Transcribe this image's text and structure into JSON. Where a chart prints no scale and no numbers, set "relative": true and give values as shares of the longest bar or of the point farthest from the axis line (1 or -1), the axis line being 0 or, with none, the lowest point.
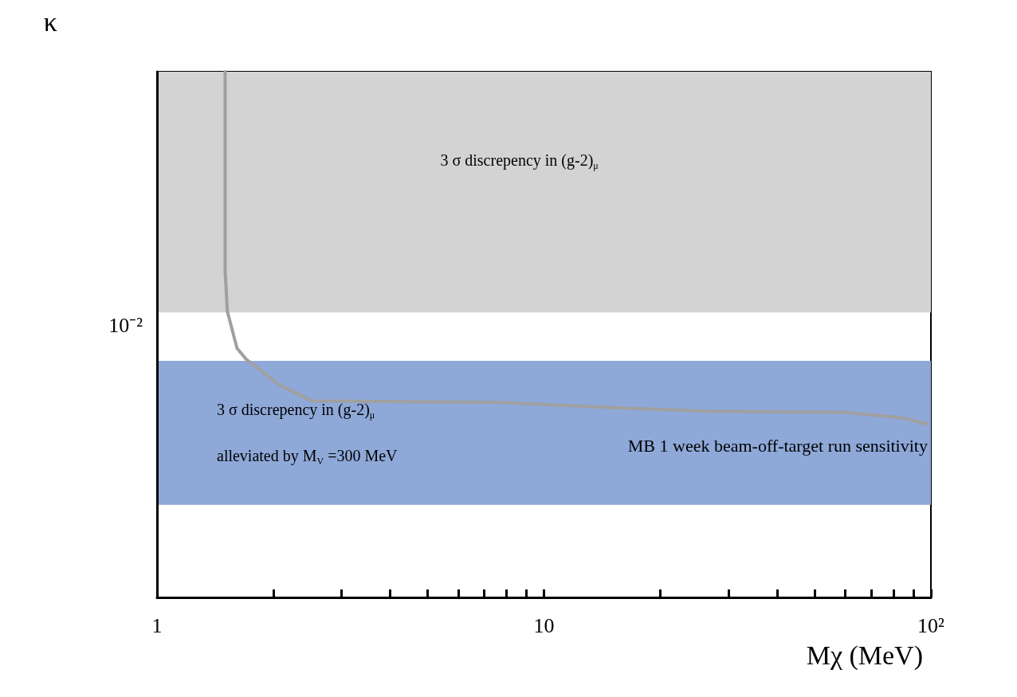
{
  "chart_data": {
    "type": "line",
    "xlabel": "Mχ (MeV)",
    "ylabel": "κ",
    "log": "x",
    "relative": true,
    "xlim": [
      1,
      100
    ],
    "xticks": [
      1,
      {
        "value": 2,
        "label": null
      },
      {
        "value": 3,
        "label": null
      },
      {
        "value": 4,
        "label": null
      },
      {
        "value": 5,
        "label": null
      },
      {
        "value": 6,
        "label": null
      },
      {
        "value": 7,
        "label": null
      },
      {
        "value": 8,
        "label": null
      },
      {
        "value": 9,
        "label": null
      },
      10,
      {
        "value": 20,
        "label": null
      },
      {
        "value": 30,
        "label": null
      },
      {
        "value": 40,
        "label": null
      },
      {
        "value": 50,
        "label": null
      },
      {
        "value": 60,
        "label": null
      },
      {
        "value": 70,
        "label": null
      },
      {
        "value": 80,
        "label": null
      },
      {
        "value": 90,
        "label": null
      },
      {
        "value": 100,
        "label": "10²"
      }
    ],
    "grid": false,
    "marker": "none",
    "annotations": [
      "10⁻²"
    ],
    "bands": [
      {
        "axis": "y",
        "from": 0.542,
        "to": 1,
        "label": "3 σ discrepency in (g-2)$_{μ}$",
        "color": "#d3d3d3"
      },
      {
        "axis": "y",
        "from": 0.176,
        "to": 0.45,
        "label": "3 σ discrepency in (g-2)$_{μ}$\nalleviated by M$_{V}$ =300 MeV",
        "color": "#8ea8d8"
      }
    ],
    "series": [
      {
        "name": "MB 1 week beam-off-target run sensitivity",
        "color": "#a0a0a0",
        "x": [
          1.5,
          1.5,
          1.52,
          1.61,
          1.7,
          2.08,
          2.51,
          7.67,
          15.1,
          26.4,
          60.2,
          83.5,
          98.1
        ],
        "values": [
          1,
          0.62,
          0.544,
          0.474,
          0.453,
          0.403,
          0.374,
          0.371,
          0.361,
          0.354,
          0.352,
          0.342,
          0.33
        ]
      }
    ]
  }
}
